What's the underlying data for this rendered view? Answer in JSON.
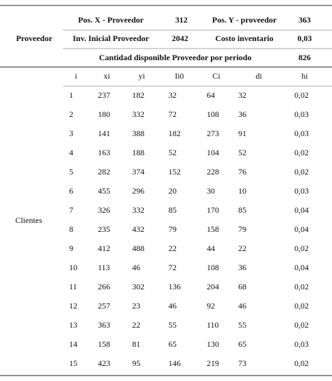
{
  "proveedor": {
    "label": "Proveedor",
    "row1": [
      "Pos. X - Proveedor",
      312,
      "Pos. Y - proveedor",
      363
    ],
    "row2": [
      "Inv. Inicial Proveedor",
      2042,
      "Costo inventario",
      "0,03"
    ],
    "row3": [
      "Cantidad disponible Proveedor por periodo",
      826
    ]
  },
  "clientes": {
    "label": "Clientes",
    "header": [
      "i",
      "xi",
      "yi",
      "Ii0",
      "Ci",
      "di",
      "hi"
    ],
    "rows": [
      [
        1,
        237,
        182,
        32,
        64,
        32,
        "0,02"
      ],
      [
        2,
        180,
        332,
        72,
        108,
        36,
        "0,03"
      ],
      [
        3,
        141,
        388,
        182,
        273,
        91,
        "0,03"
      ],
      [
        4,
        163,
        188,
        52,
        104,
        52,
        "0,02"
      ],
      [
        5,
        282,
        374,
        152,
        228,
        76,
        "0,02"
      ],
      [
        6,
        455,
        296,
        20,
        30,
        10,
        "0,03"
      ],
      [
        7,
        326,
        332,
        85,
        170,
        85,
        "0,04"
      ],
      [
        8,
        235,
        432,
        79,
        158,
        79,
        "0,04"
      ],
      [
        9,
        412,
        488,
        22,
        44,
        22,
        "0,02"
      ],
      [
        10,
        113,
        46,
        72,
        108,
        36,
        "0,04"
      ],
      [
        11,
        266,
        302,
        136,
        204,
        68,
        "0,02"
      ],
      [
        12,
        257,
        23,
        46,
        92,
        46,
        "0,02"
      ],
      [
        13,
        363,
        22,
        55,
        110,
        55,
        "0,02"
      ],
      [
        14,
        158,
        81,
        65,
        130,
        65,
        "0,03"
      ],
      [
        15,
        423,
        95,
        146,
        219,
        73,
        "0,02"
      ]
    ]
  }
}
